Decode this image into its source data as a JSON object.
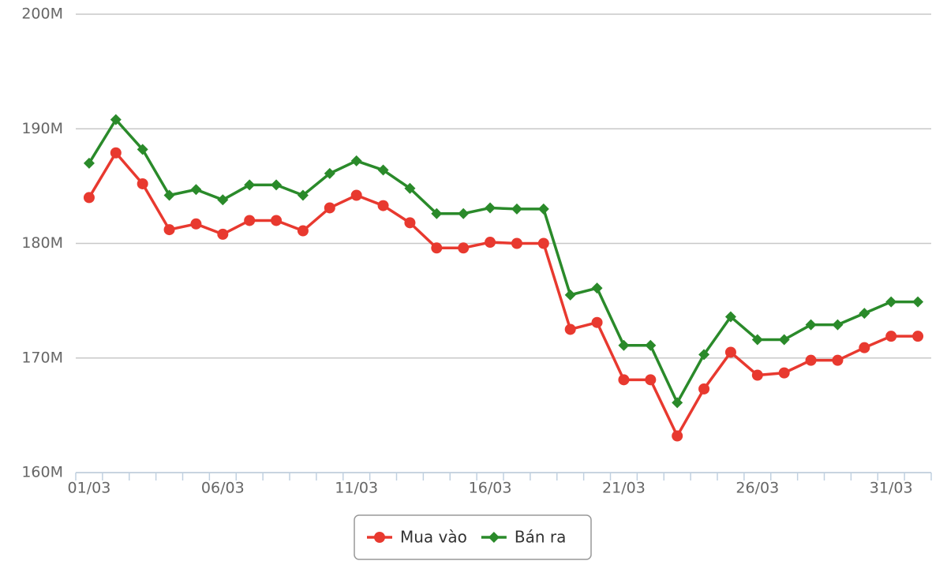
{
  "chart_data": {
    "type": "line",
    "categories": [
      "01/03",
      null,
      null,
      null,
      null,
      "06/03",
      null,
      null,
      null,
      null,
      "11/03",
      null,
      null,
      null,
      null,
      "16/03",
      null,
      null,
      null,
      null,
      "21/03",
      null,
      null,
      null,
      null,
      "26/03",
      null,
      null,
      null,
      null,
      "31/03",
      null
    ],
    "series": [
      {
        "name": "Mua vào",
        "color": "#e8392f",
        "marker": "circle",
        "values": [
          184.0,
          187.9,
          185.2,
          181.2,
          181.7,
          180.8,
          182.0,
          182.0,
          181.1,
          183.1,
          184.2,
          183.3,
          181.8,
          179.6,
          179.6,
          180.1,
          180.0,
          180.0,
          172.5,
          173.1,
          168.1,
          168.1,
          163.2,
          167.3,
          170.5,
          168.5,
          168.7,
          169.8,
          169.8,
          170.9,
          171.9,
          171.9
        ]
      },
      {
        "name": "Bán ra",
        "color": "#2a8a2a",
        "marker": "diamond",
        "values": [
          187.0,
          190.8,
          188.2,
          184.2,
          184.7,
          183.8,
          185.1,
          185.1,
          184.2,
          186.1,
          187.2,
          186.4,
          184.8,
          182.6,
          182.6,
          183.1,
          183.0,
          183.0,
          175.5,
          176.1,
          171.1,
          171.1,
          166.1,
          170.3,
          173.6,
          171.6,
          171.6,
          172.9,
          172.9,
          173.9,
          174.9,
          174.9
        ]
      }
    ],
    "ylim": [
      160,
      200
    ],
    "yticks": [
      {
        "value": 160,
        "label": "160M"
      },
      {
        "value": 170,
        "label": "170M"
      },
      {
        "value": 180,
        "label": "180M"
      },
      {
        "value": 190,
        "label": "190M"
      },
      {
        "value": 200,
        "label": "200M"
      }
    ],
    "grid": true,
    "legend": "bottom"
  }
}
